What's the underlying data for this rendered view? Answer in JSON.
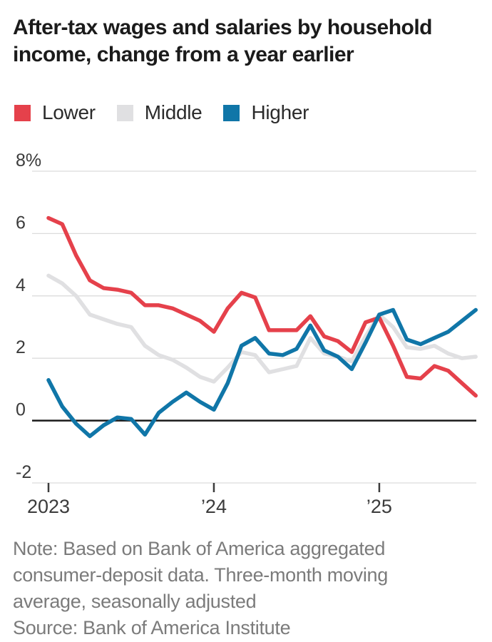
{
  "header": {
    "title_lines": [
      "After-tax wages and salaries by household",
      "income, change from a year earlier"
    ]
  },
  "legend": {
    "items": [
      {
        "label": "Lower",
        "color": "#e5414b"
      },
      {
        "label": "Middle",
        "color": "#e0e0e2"
      },
      {
        "label": "Higher",
        "color": "#1076a8"
      }
    ]
  },
  "chart_data": {
    "type": "line",
    "title": "After-tax wages and salaries by household income, change from a year earlier",
    "unit": "percent change from a year earlier",
    "grid": true,
    "legend_position": "top",
    "y_ticks": [
      8,
      6,
      4,
      2,
      0,
      -2
    ],
    "y_tick_labels": [
      "8%",
      "6",
      "4",
      "2",
      "0",
      "-2"
    ],
    "ylim": [
      -2.8,
      8.7
    ],
    "zero_line": true,
    "x_ticks": [
      {
        "label": "2023",
        "month_index": 0
      },
      {
        "label": "’24",
        "month_index": 12
      },
      {
        "label": "’25",
        "month_index": 24
      }
    ],
    "months": [
      "Jan 2023",
      "Feb 2023",
      "Mar 2023",
      "Apr 2023",
      "May 2023",
      "Jun 2023",
      "Jul 2023",
      "Aug 2023",
      "Sep 2023",
      "Oct 2023",
      "Nov 2023",
      "Dec 2023",
      "Jan 2024",
      "Feb 2024",
      "Mar 2024",
      "Apr 2024",
      "May 2024",
      "Jun 2024",
      "Jul 2024",
      "Aug 2024",
      "Sep 2024",
      "Oct 2024",
      "Nov 2024",
      "Dec 2024",
      "Jan 2025",
      "Feb 2025",
      "Mar 2025",
      "Apr 2025",
      "May 2025",
      "Jun 2025",
      "Jul 2025",
      "Aug 2025"
    ],
    "series": [
      {
        "name": "Lower",
        "color": "#e5414b",
        "values": [
          6.5,
          6.3,
          5.3,
          4.5,
          4.25,
          4.2,
          4.1,
          3.7,
          3.7,
          3.6,
          3.4,
          3.2,
          2.85,
          3.6,
          4.1,
          3.95,
          2.9,
          2.9,
          2.9,
          3.35,
          2.7,
          2.55,
          2.2,
          3.15,
          3.3,
          2.4,
          1.4,
          1.35,
          1.75,
          1.6,
          1.2,
          0.8
        ]
      },
      {
        "name": "Middle",
        "color": "#e0e0e2",
        "values": [
          4.65,
          4.4,
          4.0,
          3.4,
          3.25,
          3.1,
          3.0,
          2.4,
          2.1,
          1.95,
          1.7,
          1.4,
          1.25,
          1.7,
          2.2,
          2.1,
          1.55,
          1.65,
          1.75,
          2.65,
          2.15,
          2.05,
          1.9,
          2.7,
          3.4,
          3.0,
          2.35,
          2.3,
          2.4,
          2.15,
          2.0,
          2.05
        ]
      },
      {
        "name": "Higher",
        "color": "#1076a8",
        "values": [
          1.3,
          0.45,
          -0.1,
          -0.5,
          -0.15,
          0.1,
          0.05,
          -0.45,
          0.25,
          0.6,
          0.9,
          0.6,
          0.35,
          1.2,
          2.4,
          2.65,
          2.15,
          2.1,
          2.3,
          3.05,
          2.25,
          2.05,
          1.65,
          2.5,
          3.4,
          3.55,
          2.6,
          2.45,
          2.65,
          2.85,
          3.2,
          3.55
        ]
      }
    ],
    "colors": {
      "gridline": "#dcdcdc",
      "zero_line": "#1a1a1a",
      "axis_text": "#3b3b3b"
    }
  },
  "footer": {
    "note": "Note: Based on Bank of America aggregated consumer-deposit data. Three-month moving average, seasonally adjusted",
    "source": "Source: Bank of America Institute"
  }
}
